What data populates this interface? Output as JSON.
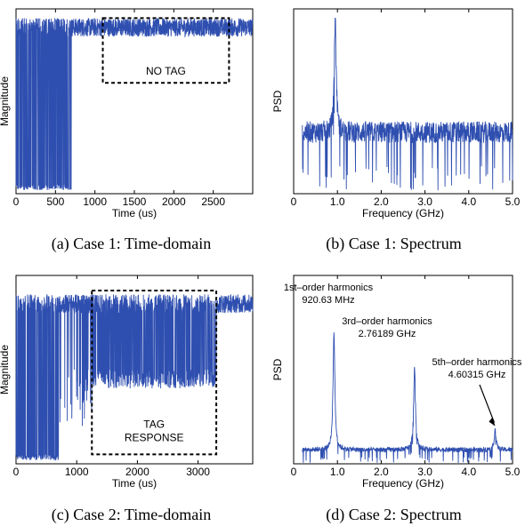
{
  "colors": {
    "signal": "#2f4fb0",
    "axis": "#000000",
    "background": "#ffffff"
  },
  "captions": [
    "(a)  Case 1:  Time-domain",
    "(b)  Case 1:  Spectrum",
    "(c)  Case 2:  Time-domain",
    "(d)  Case 2:  Spectrum"
  ],
  "chart_data": [
    {
      "type": "line",
      "xlabel": "Time (us)",
      "ylabel": "Magnitude",
      "xlim": [
        0,
        3000
      ],
      "xticks": [
        0,
        500,
        1000,
        1500,
        2000,
        2500
      ],
      "yticks": [],
      "grid": false,
      "series": [
        {
          "segments": [
            {
              "x_range": [
                0,
                700
              ],
              "pattern": "switching between high level and near-zero level"
            },
            {
              "x_range": [
                700,
                3000
              ],
              "pattern": "steady high level with noise"
            }
          ],
          "high_level": 0.9,
          "low_level": 0.02
        }
      ],
      "annotations": [
        {
          "text": "NO TAG",
          "box_x": [
            1100,
            2700
          ],
          "box_y": [
            0.6,
            0.95
          ]
        }
      ]
    },
    {
      "type": "line",
      "xlabel": "Frequency  (GHz)",
      "ylabel": "PSD",
      "xlim": [
        0,
        5.0
      ],
      "xticks": [
        "0",
        "1.0",
        "2.0",
        "3.0",
        "4.0",
        "5.0"
      ],
      "yticks": [],
      "grid": false,
      "series": [
        {
          "noise_floor": 0.35,
          "peaks": [
            {
              "x": 0.95,
              "y": 1.0
            }
          ]
        }
      ]
    },
    {
      "type": "line",
      "xlabel": "Time (us)",
      "ylabel": "Magnitude",
      "xlim": [
        0,
        3900
      ],
      "xticks": [
        0,
        1000,
        2000,
        3000
      ],
      "yticks": [],
      "grid": false,
      "series": [
        {
          "segments": [
            {
              "x_range": [
                0,
                700
              ],
              "pattern": "switching between high level and near-zero level"
            },
            {
              "x_range": [
                700,
                1250
              ],
              "pattern": "high level with deep dips"
            },
            {
              "x_range": [
                1250,
                3300
              ],
              "pattern": "tag response switching between high and mid level"
            },
            {
              "x_range": [
                3300,
                3900
              ],
              "pattern": "high level with noise"
            }
          ],
          "high_level": 0.85,
          "low_level": 0.02
        }
      ],
      "annotations": [
        {
          "text": "TAG\nRESPONSE",
          "box_x": [
            1250,
            3300
          ],
          "box_y": [
            0.05,
            0.92
          ]
        }
      ]
    },
    {
      "type": "line",
      "xlabel": "Frequency  (GHz)",
      "ylabel": "PSD",
      "xlim": [
        0,
        5.0
      ],
      "xticks": [
        "0",
        "1.0",
        "2.0",
        "3.0",
        "4.0",
        "5.0"
      ],
      "yticks": [],
      "grid": false,
      "series": [
        {
          "noise_floor": 0.08,
          "peaks": [
            {
              "x": 0.92063,
              "y": 0.75
            },
            {
              "x": 2.76189,
              "y": 0.55
            },
            {
              "x": 4.60315,
              "y": 0.2
            }
          ]
        }
      ],
      "annotations": [
        {
          "text": "1st–order harmonics\n920.63 MHz",
          "x": 0.92063
        },
        {
          "text": "3rd–order harmonics\n2.76189 GHz",
          "x": 2.76189
        },
        {
          "text": "5th–order harmonics\n4.60315 GHz",
          "x": 4.60315
        }
      ]
    }
  ]
}
